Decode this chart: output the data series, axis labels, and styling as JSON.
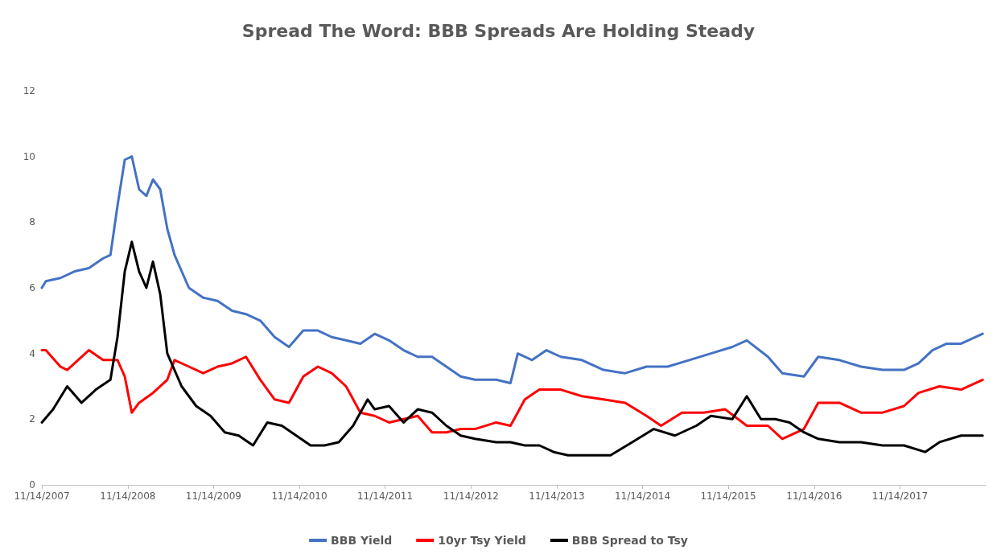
{
  "chart_data": {
    "type": "line",
    "title": "Spread The Word: BBB Spreads Are Holding Steady",
    "xlim": [
      "2007-11-14",
      "2018-11-14"
    ],
    "xticks": [
      {
        "value": "2007-11-14",
        "label": "11/14/2007"
      },
      {
        "value": "2008-11-14",
        "label": "11/14/2008"
      },
      {
        "value": "2009-11-14",
        "label": "11/14/2009"
      },
      {
        "value": "2010-11-14",
        "label": "11/14/2010"
      },
      {
        "value": "2011-11-14",
        "label": "11/14/2011"
      },
      {
        "value": "2012-11-14",
        "label": "11/14/2012"
      },
      {
        "value": "2013-11-14",
        "label": "11/14/2013"
      },
      {
        "value": "2014-11-14",
        "label": "11/14/2014"
      },
      {
        "value": "2015-11-14",
        "label": "11/14/2015"
      },
      {
        "value": "2016-11-14",
        "label": "11/14/2016"
      },
      {
        "value": "2017-11-14",
        "label": "11/14/2017"
      }
    ],
    "ylim": [
      0,
      12
    ],
    "yticks": [
      0,
      2,
      4,
      6,
      8,
      10,
      12
    ],
    "grid": false,
    "legend": "bottom",
    "marker": "none",
    "line_style": "solid",
    "series": [
      {
        "name": "BBB Yield",
        "color": "#4472c4",
        "x": [
          "2007-11-14",
          "2007-12",
          "2008-02",
          "2008-04",
          "2008-06",
          "2008-08",
          "2008-09",
          "2008-10",
          "2008-11",
          "2008-12",
          "2009-01",
          "2009-02",
          "2009-03",
          "2009-04",
          "2009-05",
          "2009-06",
          "2009-08",
          "2009-10",
          "2009-12",
          "2010-02",
          "2010-04",
          "2010-06",
          "2010-08",
          "2010-10",
          "2010-12",
          "2011-02",
          "2011-04",
          "2011-06",
          "2011-08",
          "2011-10",
          "2011-12",
          "2012-02",
          "2012-04",
          "2012-06",
          "2012-08",
          "2012-10",
          "2012-12",
          "2013-03",
          "2013-05",
          "2013-06",
          "2013-08",
          "2013-10",
          "2013-12",
          "2014-03",
          "2014-06",
          "2014-09",
          "2014-12",
          "2015-03",
          "2015-06",
          "2015-09",
          "2015-12",
          "2016-02",
          "2016-05",
          "2016-07",
          "2016-10",
          "2016-12",
          "2017-03",
          "2017-06",
          "2017-09",
          "2017-12",
          "2018-02",
          "2018-04",
          "2018-06",
          "2018-08",
          "2018-11"
        ],
        "values": [
          6.0,
          6.2,
          6.3,
          6.5,
          6.6,
          6.9,
          7.0,
          8.5,
          9.9,
          10.0,
          9.0,
          8.8,
          9.3,
          9.0,
          7.8,
          7.0,
          6.0,
          5.7,
          5.6,
          5.3,
          5.2,
          5.0,
          4.5,
          4.2,
          4.7,
          4.7,
          4.5,
          4.4,
          4.3,
          4.6,
          4.4,
          4.1,
          3.9,
          3.9,
          3.6,
          3.3,
          3.2,
          3.2,
          3.1,
          4.0,
          3.8,
          4.1,
          3.9,
          3.8,
          3.5,
          3.4,
          3.6,
          3.6,
          3.8,
          4.0,
          4.2,
          4.4,
          3.9,
          3.4,
          3.3,
          3.9,
          3.8,
          3.6,
          3.5,
          3.5,
          3.7,
          4.1,
          4.3,
          4.3,
          4.6
        ]
      },
      {
        "name": "10yr Tsy Yield",
        "color": "#ff0000",
        "x": [
          "2007-11-14",
          "2007-12",
          "2008-02",
          "2008-03",
          "2008-06",
          "2008-08",
          "2008-10",
          "2008-11",
          "2008-12",
          "2009-01",
          "2009-03",
          "2009-05",
          "2009-06",
          "2009-08",
          "2009-10",
          "2009-12",
          "2010-02",
          "2010-04",
          "2010-06",
          "2010-08",
          "2010-10",
          "2010-12",
          "2011-02",
          "2011-04",
          "2011-06",
          "2011-08",
          "2011-10",
          "2011-12",
          "2012-02",
          "2012-04",
          "2012-06",
          "2012-08",
          "2012-10",
          "2012-12",
          "2013-03",
          "2013-05",
          "2013-07",
          "2013-09",
          "2013-12",
          "2014-03",
          "2014-06",
          "2014-09",
          "2014-12",
          "2015-02",
          "2015-05",
          "2015-08",
          "2015-11",
          "2016-02",
          "2016-05",
          "2016-07",
          "2016-10",
          "2016-12",
          "2017-03",
          "2017-06",
          "2017-09",
          "2017-12",
          "2018-02",
          "2018-05",
          "2018-08",
          "2018-11"
        ],
        "values": [
          4.1,
          4.1,
          3.6,
          3.5,
          4.1,
          3.8,
          3.8,
          3.3,
          2.2,
          2.5,
          2.8,
          3.2,
          3.8,
          3.6,
          3.4,
          3.6,
          3.7,
          3.9,
          3.2,
          2.6,
          2.5,
          3.3,
          3.6,
          3.4,
          3.0,
          2.2,
          2.1,
          1.9,
          2.0,
          2.1,
          1.6,
          1.6,
          1.7,
          1.7,
          1.9,
          1.8,
          2.6,
          2.9,
          2.9,
          2.7,
          2.6,
          2.5,
          2.1,
          1.8,
          2.2,
          2.2,
          2.3,
          1.8,
          1.8,
          1.4,
          1.7,
          2.5,
          2.5,
          2.2,
          2.2,
          2.4,
          2.8,
          3.0,
          2.9,
          3.2
        ]
      },
      {
        "name": "BBB Spread to Tsy",
        "color": "#000000",
        "x": [
          "2007-11-14",
          "2008-01",
          "2008-03",
          "2008-05",
          "2008-07",
          "2008-09",
          "2008-10",
          "2008-11",
          "2008-12",
          "2009-01",
          "2009-02",
          "2009-03",
          "2009-04",
          "2009-05",
          "2009-07",
          "2009-09",
          "2009-11",
          "2010-01",
          "2010-03",
          "2010-05",
          "2010-07",
          "2010-09",
          "2010-11",
          "2011-01",
          "2011-03",
          "2011-05",
          "2011-07",
          "2011-09",
          "2011-10",
          "2011-12",
          "2012-02",
          "2012-04",
          "2012-06",
          "2012-08",
          "2012-10",
          "2012-12",
          "2013-03",
          "2013-05",
          "2013-07",
          "2013-09",
          "2013-11",
          "2014-01",
          "2014-04",
          "2014-07",
          "2014-10",
          "2015-01",
          "2015-04",
          "2015-07",
          "2015-09",
          "2015-12",
          "2016-02",
          "2016-04",
          "2016-06",
          "2016-08",
          "2016-10",
          "2016-12",
          "2017-03",
          "2017-06",
          "2017-09",
          "2017-12",
          "2018-03",
          "2018-05",
          "2018-08",
          "2018-11"
        ],
        "values": [
          1.9,
          2.3,
          3.0,
          2.5,
          2.9,
          3.2,
          4.5,
          6.5,
          7.4,
          6.5,
          6.0,
          6.8,
          5.8,
          4.0,
          3.0,
          2.4,
          2.1,
          1.6,
          1.5,
          1.2,
          1.9,
          1.8,
          1.5,
          1.2,
          1.2,
          1.3,
          1.8,
          2.6,
          2.3,
          2.4,
          1.9,
          2.3,
          2.2,
          1.8,
          1.5,
          1.4,
          1.3,
          1.3,
          1.2,
          1.2,
          1.0,
          0.9,
          0.9,
          0.9,
          1.3,
          1.7,
          1.5,
          1.8,
          2.1,
          2.0,
          2.7,
          2.0,
          2.0,
          1.9,
          1.6,
          1.4,
          1.3,
          1.3,
          1.2,
          1.2,
          1.0,
          1.3,
          1.5,
          1.5
        ]
      }
    ]
  }
}
